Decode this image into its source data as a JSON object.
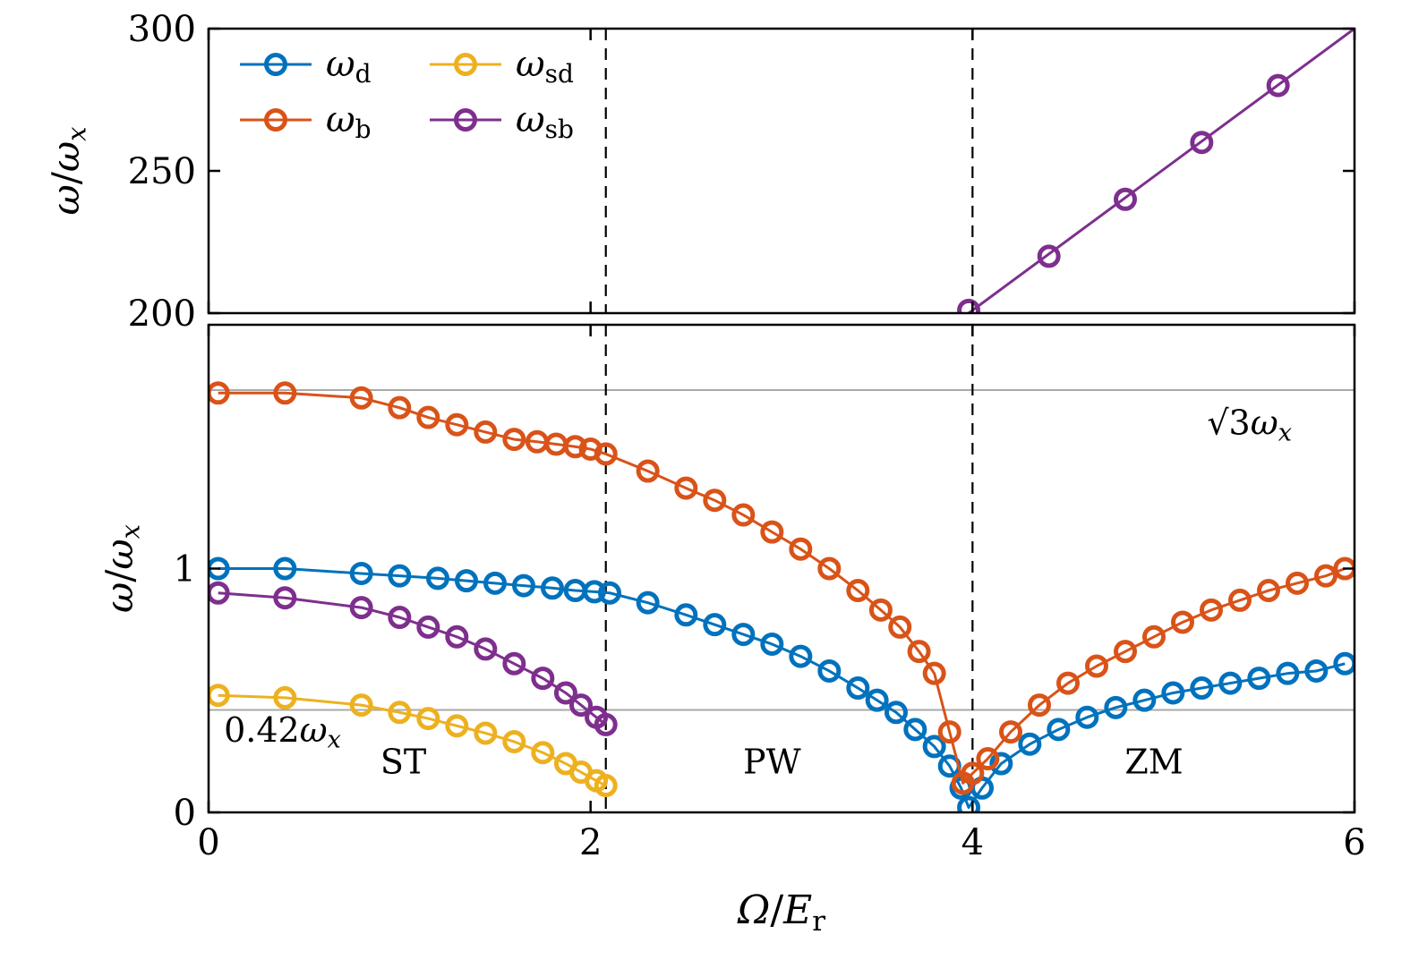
{
  "figure": {
    "background": "#ffffff",
    "frame_color": "#000000",
    "gray_guide_color": "#a9a9a9",
    "dashed_line_color": "#000000"
  },
  "chart_data": {
    "type": "line",
    "xlabel": "Ω/E_r",
    "xlim": [
      0,
      6
    ],
    "x_ticks": [
      0,
      2,
      4,
      6
    ],
    "legend_position": "top-left of upper panel, no frame, 2 columns",
    "legend": [
      {
        "label": "ω_d",
        "color": "#0072BD"
      },
      {
        "label": "ω_b",
        "color": "#D95319"
      },
      {
        "label": "ω_sd",
        "color": "#EDB120"
      },
      {
        "label": "ω_sb",
        "color": "#7E2F8E"
      }
    ],
    "panels": [
      {
        "id": "top",
        "ylabel": "ω/ω_x",
        "ylim": [
          200,
          300
        ],
        "y_ticks": [
          200,
          250,
          300
        ],
        "vlines": [
          2.08,
          4.0
        ],
        "hlines": [],
        "annotations": [],
        "series": [
          {
            "name": "ω_sb",
            "color": "#7E2F8E",
            "line": [
              [
                3.98,
                200
              ],
              [
                6.0,
                300
              ]
            ],
            "markers": [
              [
                3.98,
                201
              ],
              [
                4.4,
                220
              ],
              [
                4.8,
                240
              ],
              [
                5.2,
                260
              ],
              [
                5.6,
                280
              ]
            ]
          }
        ]
      },
      {
        "id": "bottom",
        "ylabel": "ω/ω_x",
        "ylim": [
          0,
          2
        ],
        "y_ticks": [
          0,
          1
        ],
        "vlines": [
          2.08,
          4.0
        ],
        "hlines": [
          1.732,
          0.42
        ],
        "annotations": [
          {
            "text": "√3ω_x",
            "x": 5.45,
            "y": 1.55,
            "anchor": "middle",
            "upright": false
          },
          {
            "text": "0.42ω_x",
            "x": 0.08,
            "y": 0.29,
            "anchor": "start",
            "upright": false
          },
          {
            "text": "ST",
            "x": 1.02,
            "y": 0.16,
            "anchor": "middle",
            "upright": true
          },
          {
            "text": "PW",
            "x": 2.95,
            "y": 0.16,
            "anchor": "middle",
            "upright": true
          },
          {
            "text": "ZM",
            "x": 4.95,
            "y": 0.16,
            "anchor": "middle",
            "upright": true
          }
        ],
        "series": [
          {
            "name": "ω_sd",
            "color": "#EDB120",
            "points": [
              [
                0.05,
                0.48
              ],
              [
                0.4,
                0.47
              ],
              [
                0.8,
                0.44
              ],
              [
                1.0,
                0.41
              ],
              [
                1.15,
                0.385
              ],
              [
                1.3,
                0.355
              ],
              [
                1.45,
                0.325
              ],
              [
                1.6,
                0.29
              ],
              [
                1.75,
                0.245
              ],
              [
                1.87,
                0.2
              ],
              [
                1.95,
                0.165
              ],
              [
                2.03,
                0.13
              ],
              [
                2.08,
                0.11
              ]
            ]
          },
          {
            "name": "ω_sb",
            "color": "#7E2F8E",
            "points": [
              [
                0.05,
                0.9
              ],
              [
                0.4,
                0.88
              ],
              [
                0.8,
                0.84
              ],
              [
                1.0,
                0.8
              ],
              [
                1.15,
                0.76
              ],
              [
                1.3,
                0.72
              ],
              [
                1.45,
                0.67
              ],
              [
                1.6,
                0.61
              ],
              [
                1.75,
                0.55
              ],
              [
                1.87,
                0.49
              ],
              [
                1.95,
                0.44
              ],
              [
                2.03,
                0.39
              ],
              [
                2.08,
                0.36
              ]
            ]
          },
          {
            "name": "ω_d",
            "color": "#0072BD",
            "points": [
              [
                0.05,
                1.0
              ],
              [
                0.4,
                1.0
              ],
              [
                0.8,
                0.98
              ],
              [
                1.0,
                0.97
              ],
              [
                1.2,
                0.96
              ],
              [
                1.35,
                0.95
              ],
              [
                1.5,
                0.94
              ],
              [
                1.65,
                0.93
              ],
              [
                1.8,
                0.92
              ],
              [
                1.92,
                0.91
              ],
              [
                2.02,
                0.905
              ],
              [
                2.1,
                0.9
              ],
              [
                2.3,
                0.86
              ],
              [
                2.5,
                0.81
              ],
              [
                2.65,
                0.77
              ],
              [
                2.8,
                0.73
              ],
              [
                2.95,
                0.69
              ],
              [
                3.1,
                0.64
              ],
              [
                3.25,
                0.58
              ],
              [
                3.4,
                0.51
              ],
              [
                3.5,
                0.46
              ],
              [
                3.6,
                0.41
              ],
              [
                3.7,
                0.34
              ],
              [
                3.8,
                0.27
              ],
              [
                3.88,
                0.19
              ],
              [
                3.94,
                0.1
              ],
              [
                3.98,
                0.02
              ],
              [
                4.05,
                0.1
              ],
              [
                4.15,
                0.2
              ],
              [
                4.3,
                0.28
              ],
              [
                4.45,
                0.34
              ],
              [
                4.6,
                0.39
              ],
              [
                4.75,
                0.43
              ],
              [
                4.9,
                0.46
              ],
              [
                5.05,
                0.49
              ],
              [
                5.2,
                0.51
              ],
              [
                5.35,
                0.53
              ],
              [
                5.5,
                0.55
              ],
              [
                5.65,
                0.57
              ],
              [
                5.8,
                0.58
              ],
              [
                5.95,
                0.61
              ]
            ]
          },
          {
            "name": "ω_b",
            "color": "#D95319",
            "points": [
              [
                0.05,
                1.72
              ],
              [
                0.4,
                1.72
              ],
              [
                0.8,
                1.7
              ],
              [
                1.0,
                1.66
              ],
              [
                1.15,
                1.62
              ],
              [
                1.3,
                1.59
              ],
              [
                1.45,
                1.56
              ],
              [
                1.6,
                1.53
              ],
              [
                1.72,
                1.52
              ],
              [
                1.82,
                1.51
              ],
              [
                1.92,
                1.5
              ],
              [
                2.0,
                1.49
              ],
              [
                2.08,
                1.47
              ],
              [
                2.3,
                1.4
              ],
              [
                2.5,
                1.33
              ],
              [
                2.65,
                1.28
              ],
              [
                2.8,
                1.22
              ],
              [
                2.95,
                1.15
              ],
              [
                3.1,
                1.08
              ],
              [
                3.25,
                1.0
              ],
              [
                3.4,
                0.91
              ],
              [
                3.52,
                0.83
              ],
              [
                3.62,
                0.76
              ],
              [
                3.72,
                0.66
              ],
              [
                3.8,
                0.57
              ],
              [
                3.88,
                0.33
              ],
              [
                3.95,
                0.12
              ],
              [
                4.0,
                0.16
              ],
              [
                4.08,
                0.22
              ],
              [
                4.2,
                0.33
              ],
              [
                4.35,
                0.44
              ],
              [
                4.5,
                0.53
              ],
              [
                4.65,
                0.6
              ],
              [
                4.8,
                0.66
              ],
              [
                4.95,
                0.72
              ],
              [
                5.1,
                0.78
              ],
              [
                5.25,
                0.83
              ],
              [
                5.4,
                0.87
              ],
              [
                5.55,
                0.91
              ],
              [
                5.7,
                0.94
              ],
              [
                5.85,
                0.97
              ],
              [
                5.95,
                1.0
              ]
            ]
          }
        ]
      }
    ]
  }
}
